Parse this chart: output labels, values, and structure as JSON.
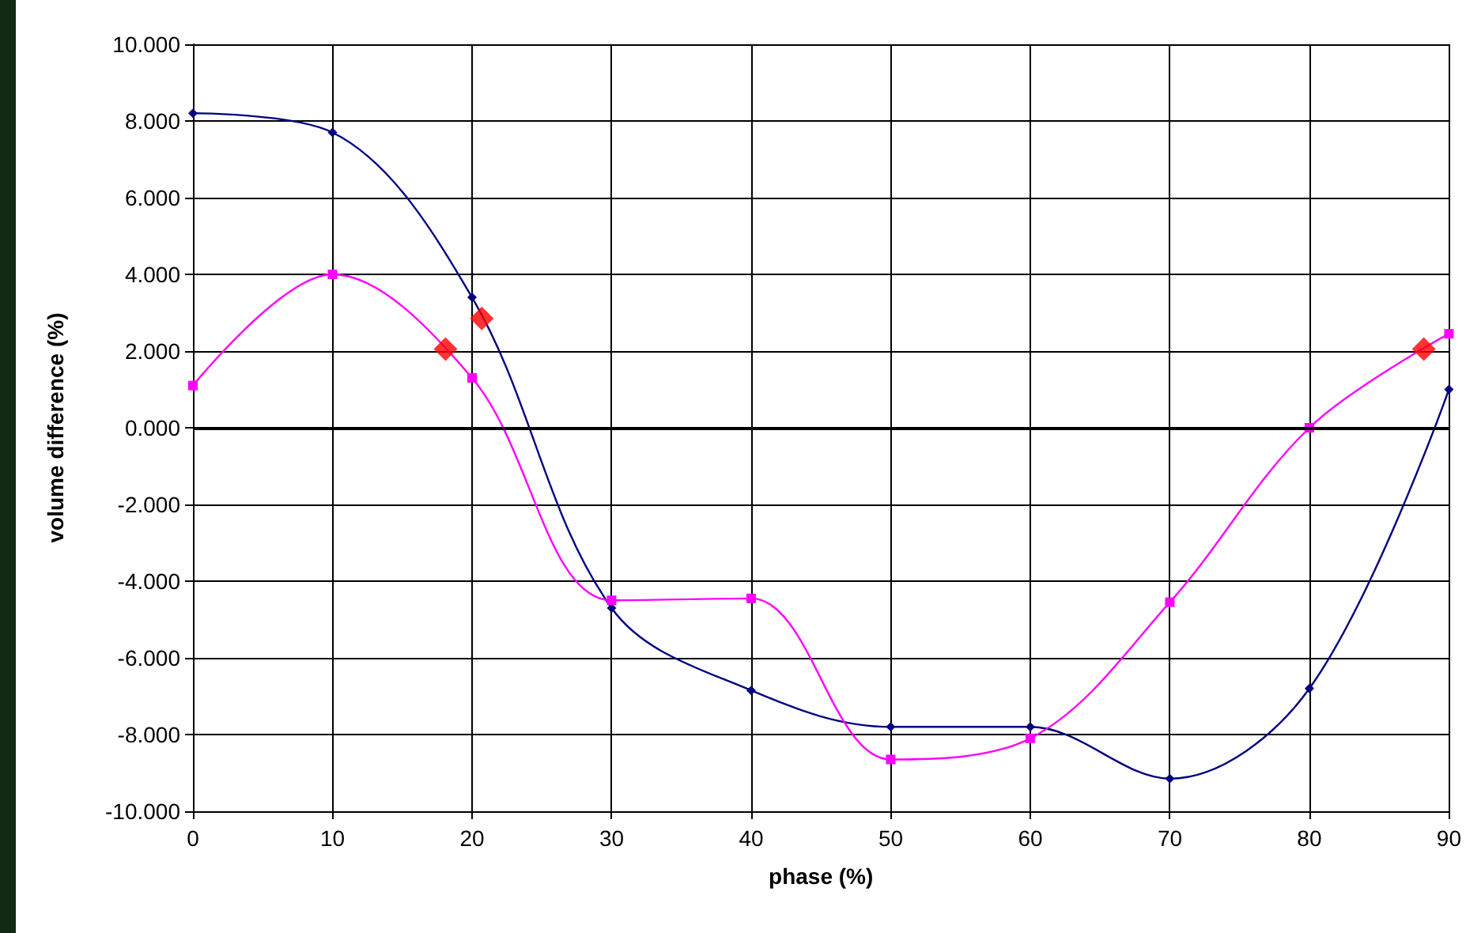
{
  "chart_data": {
    "type": "line",
    "xlabel": "phase (%)",
    "ylabel": "volume difference (%)",
    "xlim": [
      0,
      90
    ],
    "xticks": [
      0,
      10,
      20,
      30,
      40,
      50,
      60,
      70,
      80,
      90
    ],
    "ylim": [
      -10,
      10
    ],
    "yticks": [
      {
        "value": -10,
        "label": "-10.000"
      },
      {
        "value": -8,
        "label": "-8.000"
      },
      {
        "value": -6,
        "label": "-6.000"
      },
      {
        "value": -4,
        "label": "-4.000"
      },
      {
        "value": -2,
        "label": "-2.000"
      },
      {
        "value": 0,
        "label": "0.000"
      },
      {
        "value": 2,
        "label": "2.000"
      },
      {
        "value": 4,
        "label": "4.000"
      },
      {
        "value": 6,
        "label": "6.000"
      },
      {
        "value": 8,
        "label": "8.000"
      },
      {
        "value": 10,
        "label": "10.000"
      }
    ],
    "grid": true,
    "ref_lines": [
      {
        "axis": "y",
        "value": 0,
        "color": "#000000"
      }
    ],
    "series": [
      {
        "color": "#000080",
        "marker": "diamond",
        "x": [
          0,
          10,
          20,
          30,
          40,
          50,
          60,
          70,
          80,
          90
        ],
        "values": [
          8.2,
          7.7,
          3.4,
          -4.7,
          -6.85,
          -7.8,
          -7.8,
          -9.15,
          -6.8,
          1.0
        ]
      },
      {
        "color": "#ff00ff",
        "marker": "square",
        "x": [
          0,
          10,
          20,
          30,
          40,
          50,
          60,
          70,
          80,
          90
        ],
        "values": [
          1.1,
          4.0,
          1.3,
          -4.5,
          -4.45,
          -8.65,
          -8.1,
          -4.55,
          0.0,
          2.45
        ]
      },
      {
        "type": "scatter",
        "color": "#ff0000",
        "marker": "diamond",
        "x": [
          18.1,
          20.7,
          88.2
        ],
        "values": [
          2.05,
          2.85,
          2.05
        ]
      }
    ]
  }
}
